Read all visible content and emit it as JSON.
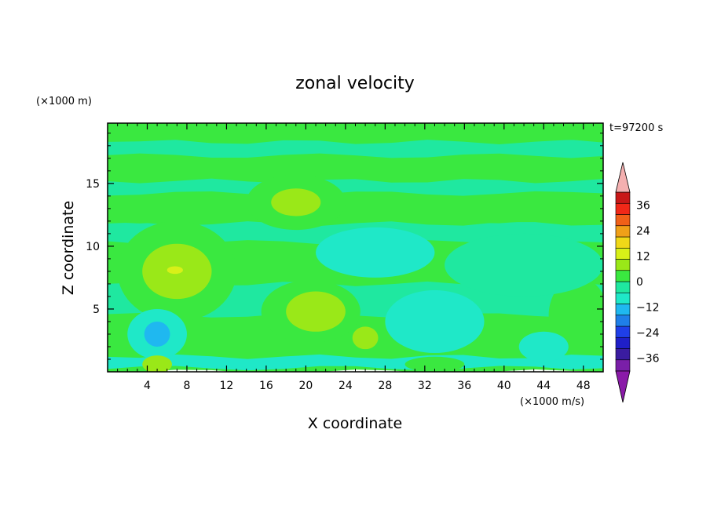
{
  "chart_data": {
    "type": "heatmap",
    "title": "zonal velocity",
    "xlabel": "X coordinate",
    "ylabel": "Z coordinate",
    "x_unit": "(×1000 m/s)",
    "y_unit": "(×1000 m)",
    "time_label": "t=97200 s",
    "xlim": [
      0,
      50
    ],
    "ylim": [
      0,
      19.8
    ],
    "x_ticks": [
      4,
      8,
      12,
      16,
      20,
      24,
      28,
      32,
      36,
      40,
      44,
      48
    ],
    "y_ticks": [
      5,
      10,
      15
    ],
    "colorbar": {
      "tick_labels": [
        "36",
        "24",
        "12",
        "0",
        "−12",
        "−24",
        "−36"
      ],
      "tick_values": [
        36,
        24,
        12,
        0,
        -12,
        -24,
        -36
      ],
      "levels": [
        -42,
        -36,
        -30,
        -24,
        -18,
        -12,
        -6,
        0,
        6,
        12,
        18,
        24,
        30,
        36,
        42
      ],
      "colors": [
        "#7a1fa8",
        "#3a1ca0",
        "#1f1fc8",
        "#1f3fe8",
        "#1f7fe8",
        "#1fb8f0",
        "#1fe8c8",
        "#1fe8a0",
        "#3ae840",
        "#9ae818",
        "#d8f018",
        "#f0d818",
        "#f0a018",
        "#f06018",
        "#f02818",
        "#c81818"
      ],
      "over_color": "#f4b0b0",
      "under_color": "#8a1aa8"
    },
    "regions": [
      {
        "shape": "band",
        "y": [
          0,
          19.8
        ],
        "x": [
          0,
          50
        ],
        "value": 0
      },
      {
        "shape": "band",
        "y": [
          0.3,
          1.2
        ],
        "x": [
          0,
          50
        ],
        "value": -8
      },
      {
        "shape": "band",
        "y": [
          4.5,
          7.0
        ],
        "x": [
          0,
          50
        ],
        "value": -4
      },
      {
        "shape": "band",
        "y": [
          8.5,
          10.0
        ],
        "x": [
          0,
          50
        ],
        "value": 2
      },
      {
        "shape": "band",
        "y": [
          10.3,
          11.8
        ],
        "x": [
          0,
          50
        ],
        "value": -4
      },
      {
        "shape": "band",
        "y": [
          12.0,
          13.8
        ],
        "x": [
          0,
          50
        ],
        "value": 2
      },
      {
        "shape": "band",
        "y": [
          14.2,
          15.2
        ],
        "x": [
          0,
          50
        ],
        "value": -4
      },
      {
        "shape": "band",
        "y": [
          15.5,
          16.8
        ],
        "x": [
          0,
          50
        ],
        "value": 2
      },
      {
        "shape": "band",
        "y": [
          17.2,
          18.3
        ],
        "x": [
          0,
          50
        ],
        "value": -4
      },
      {
        "shape": "band",
        "y": [
          18.6,
          19.8
        ],
        "x": [
          0,
          50
        ],
        "value": 2
      },
      {
        "shape": "blob",
        "cx": 7,
        "cy": 8,
        "rx": 6,
        "ry": 4,
        "value": 4
      },
      {
        "shape": "blob",
        "cx": 7,
        "cy": 8,
        "rx": 3.5,
        "ry": 2.2,
        "value": 9
      },
      {
        "shape": "blob",
        "cx": 6.8,
        "cy": 8.1,
        "rx": 0.8,
        "ry": 0.3,
        "value": 14
      },
      {
        "shape": "blob",
        "cx": 19,
        "cy": 13.5,
        "rx": 5,
        "ry": 2.2,
        "value": 4
      },
      {
        "shape": "blob",
        "cx": 19,
        "cy": 13.5,
        "rx": 2.5,
        "ry": 1.1,
        "value": 9
      },
      {
        "shape": "blob",
        "cx": 20.5,
        "cy": 4.8,
        "rx": 5,
        "ry": 2.5,
        "value": 4
      },
      {
        "shape": "blob",
        "cx": 21,
        "cy": 4.8,
        "rx": 3,
        "ry": 1.6,
        "value": 9
      },
      {
        "shape": "blob",
        "cx": 26,
        "cy": 2.7,
        "rx": 1.3,
        "ry": 0.9,
        "value": 9
      },
      {
        "shape": "blob",
        "cx": 47.5,
        "cy": 4.5,
        "rx": 3,
        "ry": 3,
        "value": 4
      },
      {
        "shape": "blob",
        "cx": 5,
        "cy": 3,
        "rx": 3,
        "ry": 2,
        "value": -8
      },
      {
        "shape": "blob",
        "cx": 5,
        "cy": 3,
        "rx": 1.3,
        "ry": 1,
        "value": -14
      },
      {
        "shape": "blob",
        "cx": 33,
        "cy": 4,
        "rx": 5,
        "ry": 2.5,
        "value": -8
      },
      {
        "shape": "blob",
        "cx": 27,
        "cy": 9.5,
        "rx": 6,
        "ry": 2,
        "value": -8
      },
      {
        "shape": "blob",
        "cx": 42,
        "cy": 8.5,
        "rx": 8,
        "ry": 2.5,
        "value": -4
      },
      {
        "shape": "blob",
        "cx": 5,
        "cy": 0.6,
        "rx": 1.5,
        "ry": 0.7,
        "value": 9
      },
      {
        "shape": "blob",
        "cx": 33,
        "cy": 0.6,
        "rx": 3,
        "ry": 0.6,
        "value": 4
      },
      {
        "shape": "blob",
        "cx": 44,
        "cy": 2,
        "rx": 2.5,
        "ry": 1.2,
        "value": -8
      }
    ]
  }
}
